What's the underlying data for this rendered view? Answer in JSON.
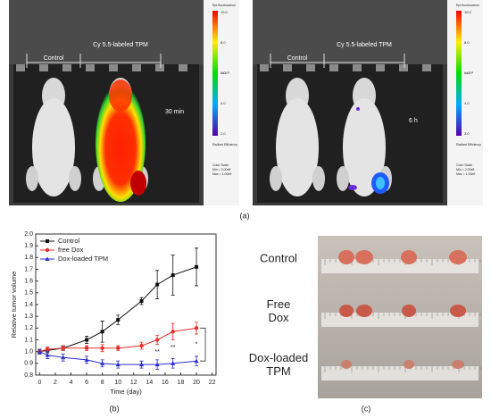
{
  "panel_a": {
    "left": {
      "groups": [
        "Control",
        "Cy 5.5-labeled TPM"
      ],
      "time": "30 min"
    },
    "right": {
      "groups": [
        "Control",
        "Cy 5.5-labeled TPM"
      ],
      "time": "6 h"
    },
    "colorbar": {
      "title": "Epi-fluorescence",
      "ticks": [
        "10.0",
        "8.0",
        "6.0",
        "4.0",
        "2.0"
      ],
      "unit": "x10⁸",
      "label": "Radiant Efficiency",
      "scale": [
        "Color Scale",
        "Min = 2.00e8",
        "Max = 1.00e9"
      ]
    }
  },
  "chart_data": {
    "type": "line",
    "xlabel": "Time (day)",
    "ylabel": "Relative tumor volume",
    "x": [
      0,
      1,
      3,
      6,
      8,
      10,
      13,
      15,
      17,
      20
    ],
    "series": [
      {
        "name": "Control",
        "color": "#111111",
        "marker": "square",
        "values": [
          1.0,
          1.01,
          1.03,
          1.1,
          1.17,
          1.27,
          1.43,
          1.57,
          1.65,
          1.72
        ],
        "errors": [
          0.02,
          0.02,
          0.02,
          0.03,
          0.09,
          0.04,
          0.03,
          0.12,
          0.17,
          0.16
        ]
      },
      {
        "name": "free Dox",
        "color": "#e8302a",
        "marker": "circle",
        "values": [
          1.0,
          1.02,
          1.03,
          1.03,
          1.03,
          1.03,
          1.05,
          1.1,
          1.17,
          1.2
        ],
        "errors": [
          0.02,
          0.02,
          0.02,
          0.02,
          0.03,
          0.02,
          0.03,
          0.04,
          0.07,
          0.05
        ]
      },
      {
        "name": "Dox-loaded TPM",
        "color": "#2d2fd0",
        "marker": "triangle",
        "values": [
          1.0,
          0.97,
          0.95,
          0.93,
          0.9,
          0.89,
          0.89,
          0.89,
          0.9,
          0.92
        ],
        "errors": [
          0.02,
          0.03,
          0.03,
          0.03,
          0.03,
          0.03,
          0.03,
          0.04,
          0.04,
          0.04
        ]
      }
    ],
    "annotations": [
      {
        "label": "**",
        "x": 15
      },
      {
        "label": "**",
        "x": 17
      },
      {
        "label": "*",
        "x": 20
      }
    ],
    "xlim": [
      -0.5,
      22.5
    ],
    "xticks": [
      0,
      2,
      4,
      6,
      8,
      10,
      12,
      14,
      16,
      18,
      20,
      22
    ],
    "ylim": [
      0.8,
      2.0
    ],
    "yticks": [
      0.8,
      0.9,
      {
        "value": 1.0,
        "label": "1.0"
      },
      1.1,
      1.2,
      1.3,
      1.4,
      1.5,
      1.6,
      1.7,
      1.8,
      1.9,
      {
        "value": 2.0,
        "label": "2.0"
      }
    ],
    "legend": "upper left"
  },
  "panel_c": {
    "labels": [
      "Control",
      "Free Dox",
      "Dox-loaded TPM"
    ]
  },
  "captions": [
    "(a)",
    "(b)",
    "(c)"
  ]
}
